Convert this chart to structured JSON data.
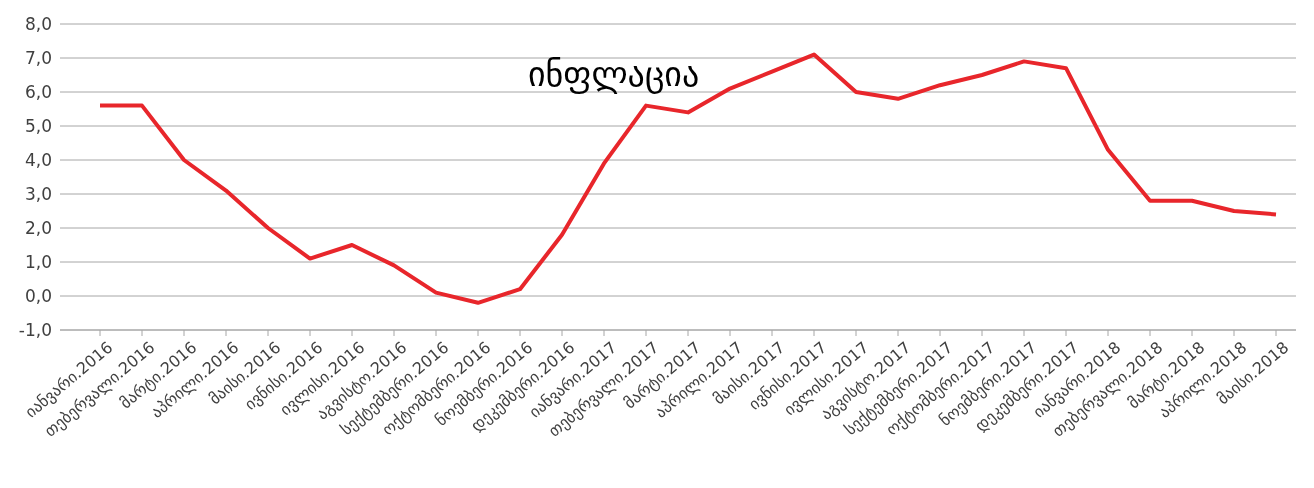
{
  "chart_data": {
    "type": "line",
    "title": "ინფლაცია",
    "categories": [
      "იანვარი.2016",
      "თებერვალი.2016",
      "მარტი.2016",
      "აპრილი.2016",
      "მაისი.2016",
      "ივნისი.2016",
      "ივლისი.2016",
      "აგვისტო.2016",
      "სექტემბერი.2016",
      "ოქტომბერი.2016",
      "ნოემბერი.2016",
      "დეკემბერი.2016",
      "იანვარი.2017",
      "თებერვალი.2017",
      "მარტი.2017",
      "აპრილი.2017",
      "მაისი.2017",
      "ივნისი.2017",
      "ივლისი.2017",
      "აგვისტო.2017",
      "სექტემბერი.2017",
      "ოქტომბერი.2017",
      "ნოემბერი.2017",
      "დეკემბერი.2017",
      "იანვარი.2018",
      "თებერვალი.2018",
      "მარტი.2018",
      "აპრილი.2018",
      "მაისი.2018"
    ],
    "series": [
      {
        "color": "#e8262b",
        "values": [
          5.6,
          5.6,
          4.0,
          3.1,
          2.0,
          1.1,
          1.5,
          0.9,
          0.1,
          -0.2,
          0.2,
          1.8,
          3.9,
          5.6,
          5.4,
          6.1,
          6.6,
          7.1,
          6.0,
          5.8,
          6.2,
          6.5,
          6.9,
          6.7,
          4.3,
          2.8,
          2.8,
          2.5,
          2.4
        ]
      }
    ],
    "ylim": [
      -1,
      8
    ],
    "yticks": [
      {
        "value": -1,
        "label": "-1,0"
      },
      {
        "value": 0,
        "label": "0,0"
      },
      {
        "value": 1,
        "label": "1,0"
      },
      {
        "value": 2,
        "label": "2,0"
      },
      {
        "value": 3,
        "label": "3,0"
      },
      {
        "value": 4,
        "label": "4,0"
      },
      {
        "value": 5,
        "label": "5,0"
      },
      {
        "value": 6,
        "label": "6,0"
      },
      {
        "value": 7,
        "label": "7,0"
      },
      {
        "value": 8,
        "label": "8,0"
      }
    ],
    "grid": "y",
    "legend": false,
    "marker": "none",
    "line_style": "solid"
  }
}
